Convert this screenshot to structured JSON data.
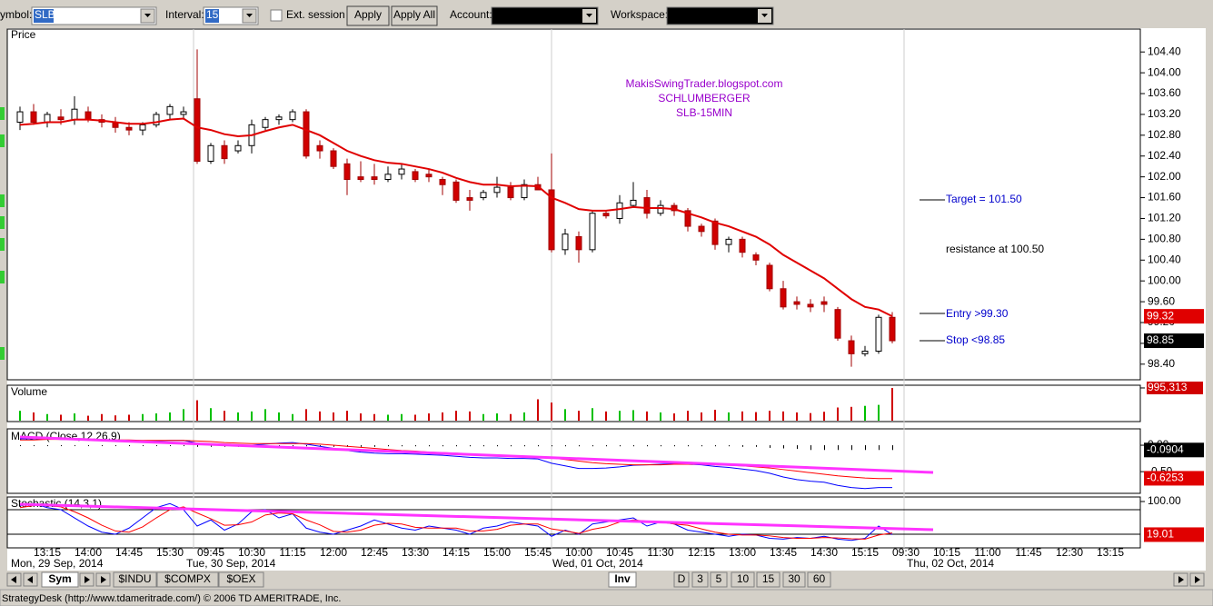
{
  "toolbar": {
    "symbol_label": "ymbol:",
    "symbol": "SLB",
    "interval_label": "Interval:",
    "interval": "15",
    "ext_session": "Ext. session",
    "apply": "Apply",
    "apply_all": "Apply All",
    "account_label": "Account:",
    "workspace_label": "Workspace:"
  },
  "chart_data": [
    {
      "type": "candlestick",
      "title": "Price",
      "ohlc": [
        [
          103.05,
          103.35,
          102.9,
          103.25
        ],
        [
          103.25,
          103.4,
          103.0,
          103.05
        ],
        [
          103.05,
          103.25,
          102.95,
          103.2
        ],
        [
          103.15,
          103.3,
          103.0,
          103.1
        ],
        [
          103.1,
          103.55,
          103.0,
          103.3
        ],
        [
          103.25,
          103.35,
          103.05,
          103.1
        ],
        [
          103.1,
          103.2,
          102.95,
          103.05
        ],
        [
          103.05,
          103.15,
          102.85,
          102.95
        ],
        [
          102.95,
          103.05,
          102.8,
          102.9
        ],
        [
          102.9,
          103.05,
          102.8,
          103.0
        ],
        [
          103.0,
          103.25,
          102.95,
          103.2
        ],
        [
          103.2,
          103.4,
          103.1,
          103.35
        ],
        [
          103.2,
          103.35,
          103.1,
          103.25
        ],
        [
          103.5,
          104.45,
          102.25,
          102.3
        ],
        [
          102.3,
          102.65,
          102.25,
          102.6
        ],
        [
          102.6,
          102.7,
          102.25,
          102.35
        ],
        [
          102.5,
          102.7,
          102.45,
          102.6
        ],
        [
          102.6,
          103.1,
          102.45,
          103.0
        ],
        [
          102.95,
          103.15,
          102.9,
          103.1
        ],
        [
          103.1,
          103.2,
          103.0,
          103.15
        ],
        [
          103.1,
          103.3,
          103.05,
          103.25
        ],
        [
          103.25,
          103.3,
          102.35,
          102.4
        ],
        [
          102.6,
          102.7,
          102.35,
          102.5
        ],
        [
          102.5,
          102.55,
          102.15,
          102.2
        ],
        [
          102.25,
          102.35,
          101.65,
          101.95
        ],
        [
          102.0,
          102.3,
          101.9,
          101.95
        ],
        [
          102.0,
          102.25,
          101.85,
          101.95
        ],
        [
          101.95,
          102.2,
          101.9,
          102.05
        ],
        [
          102.05,
          102.25,
          101.95,
          102.15
        ],
        [
          102.1,
          102.15,
          101.9,
          101.95
        ],
        [
          102.05,
          102.15,
          101.9,
          102.0
        ],
        [
          101.95,
          102.0,
          101.65,
          101.85
        ],
        [
          101.9,
          101.95,
          101.5,
          101.55
        ],
        [
          101.6,
          101.75,
          101.35,
          101.55
        ],
        [
          101.6,
          101.75,
          101.55,
          101.7
        ],
        [
          101.7,
          102.0,
          101.6,
          101.8
        ],
        [
          101.8,
          101.9,
          101.55,
          101.6
        ],
        [
          101.6,
          101.95,
          101.55,
          101.85
        ],
        [
          101.85,
          102.0,
          101.75,
          101.75
        ],
        [
          101.75,
          102.45,
          100.55,
          100.6
        ],
        [
          100.6,
          101.0,
          100.5,
          100.9
        ],
        [
          100.85,
          100.95,
          100.35,
          100.6
        ],
        [
          100.6,
          101.35,
          100.55,
          101.3
        ],
        [
          101.3,
          101.35,
          101.2,
          101.25
        ],
        [
          101.2,
          101.65,
          101.1,
          101.5
        ],
        [
          101.45,
          101.9,
          101.4,
          101.55
        ],
        [
          101.6,
          101.75,
          101.2,
          101.3
        ],
        [
          101.3,
          101.55,
          101.25,
          101.45
        ],
        [
          101.45,
          101.5,
          101.25,
          101.35
        ],
        [
          101.35,
          101.4,
          100.95,
          101.05
        ],
        [
          101.05,
          101.1,
          100.85,
          100.95
        ],
        [
          101.15,
          101.2,
          100.6,
          100.7
        ],
        [
          100.7,
          100.85,
          100.55,
          100.8
        ],
        [
          100.8,
          100.85,
          100.45,
          100.55
        ],
        [
          100.5,
          100.55,
          100.3,
          100.4
        ],
        [
          100.3,
          100.35,
          99.8,
          99.85
        ],
        [
          99.85,
          100.0,
          99.45,
          99.5
        ],
        [
          99.6,
          99.7,
          99.45,
          99.55
        ],
        [
          99.55,
          99.65,
          99.4,
          99.5
        ],
        [
          99.6,
          99.7,
          99.4,
          99.55
        ],
        [
          99.45,
          99.5,
          98.85,
          98.9
        ],
        [
          98.85,
          98.95,
          98.35,
          98.6
        ],
        [
          98.6,
          98.75,
          98.55,
          98.65
        ],
        [
          98.65,
          99.35,
          98.6,
          99.3
        ],
        [
          99.3,
          99.4,
          98.8,
          98.85
        ]
      ],
      "series": [
        {
          "color": "#e00000",
          "values": [
            103.0,
            103.02,
            103.05,
            103.05,
            103.1,
            103.1,
            103.08,
            103.05,
            103.02,
            103.02,
            103.05,
            103.1,
            103.12,
            102.95,
            102.9,
            102.82,
            102.78,
            102.8,
            102.88,
            102.95,
            103.0,
            102.9,
            102.8,
            102.65,
            102.5,
            102.4,
            102.32,
            102.27,
            102.25,
            102.2,
            102.15,
            102.08,
            101.98,
            101.9,
            101.85,
            101.85,
            101.82,
            101.83,
            101.82,
            101.6,
            101.5,
            101.38,
            101.35,
            101.35,
            101.38,
            101.42,
            101.4,
            101.4,
            101.38,
            101.3,
            101.22,
            101.12,
            101.05,
            100.95,
            100.85,
            100.7,
            100.5,
            100.35,
            100.2,
            100.05,
            99.85,
            99.65,
            99.5,
            99.45,
            99.32
          ]
        }
      ],
      "up_color": "#ffffff",
      "down_color": "#d00000",
      "ylim": [
        98.1,
        104.84
      ],
      "yticks": [
        {
          "value": 98.4,
          "label": "98.40"
        },
        {
          "value": 98.8,
          "label": "98.80"
        },
        {
          "value": 99.2,
          "label": "99.20"
        },
        {
          "value": 99.6,
          "label": "99.60"
        },
        {
          "value": 100,
          "label": "100.00"
        },
        {
          "value": 100.4,
          "label": "100.40"
        },
        {
          "value": 100.8,
          "label": "100.80"
        },
        {
          "value": 101.2,
          "label": "101.20"
        },
        {
          "value": 101.6,
          "label": "101.60"
        },
        {
          "value": 102,
          "label": "102.00"
        },
        {
          "value": 102.4,
          "label": "102.40"
        },
        {
          "value": 102.8,
          "label": "102.80"
        },
        {
          "value": 103.2,
          "label": "103.20"
        },
        {
          "value": 103.6,
          "label": "103.60"
        },
        {
          "value": 104,
          "label": "104.00"
        },
        {
          "value": 104.4,
          "label": "104.40"
        }
      ],
      "last_labels": [
        {
          "value": 99.32,
          "color": "#e00000"
        },
        {
          "value": 98.85,
          "color": "#000000"
        }
      ],
      "annotations": [
        "MakisSwingTrader.blogspot.com",
        "SCHLUMBERGER",
        "SLB-15MIN",
        "Target = 101.50",
        "resistance at 100.50",
        "Entry >99.30",
        "Stop <98.85"
      ]
    },
    {
      "type": "bar",
      "title": "Volume",
      "values": [
        300000,
        250000,
        200000,
        180000,
        220000,
        150000,
        200000,
        160000,
        180000,
        200000,
        220000,
        250000,
        350000,
        620000,
        380000,
        300000,
        250000,
        280000,
        350000,
        250000,
        200000,
        350000,
        280000,
        250000,
        300000,
        220000,
        200000,
        180000,
        200000,
        180000,
        220000,
        250000,
        300000,
        280000,
        200000,
        220000,
        200000,
        250000,
        650000,
        550000,
        350000,
        300000,
        380000,
        280000,
        300000,
        320000,
        280000,
        250000,
        220000,
        300000,
        250000,
        330000,
        250000,
        280000,
        260000,
        300000,
        280000,
        250000,
        230000,
        270000,
        400000,
        420000,
        450000,
        480000,
        995313
      ],
      "up_color": "#00c000",
      "down_color": "#d00000",
      "ylim": [
        0,
        1050000
      ],
      "yticks": [
        {
          "value": 995313,
          "label": "995,313"
        }
      ]
    },
    {
      "type": "line",
      "title": "MACD (Close,12,26,9)",
      "series": [
        {
          "color": "#0000ff",
          "values": [
            0.12,
            0.12,
            0.12,
            0.11,
            0.11,
            0.1,
            0.1,
            0.09,
            0.08,
            0.08,
            0.08,
            0.09,
            0.09,
            0.04,
            0.02,
            0,
            -0.01,
            0,
            0.02,
            0.04,
            0.05,
            0.02,
            -0.02,
            -0.06,
            -0.1,
            -0.13,
            -0.15,
            -0.16,
            -0.16,
            -0.17,
            -0.18,
            -0.19,
            -0.21,
            -0.23,
            -0.24,
            -0.24,
            -0.25,
            -0.25,
            -0.26,
            -0.34,
            -0.39,
            -0.44,
            -0.44,
            -0.43,
            -0.41,
            -0.38,
            -0.37,
            -0.36,
            -0.35,
            -0.36,
            -0.37,
            -0.4,
            -0.42,
            -0.45,
            -0.48,
            -0.53,
            -0.6,
            -0.65,
            -0.68,
            -0.7,
            -0.76,
            -0.8,
            -0.82,
            -0.8,
            -0.8
          ]
        },
        {
          "color": "#ff0000",
          "values": [
            0.1,
            0.1,
            0.11,
            0.11,
            0.11,
            0.11,
            0.1,
            0.1,
            0.1,
            0.09,
            0.09,
            0.09,
            0.09,
            0.08,
            0.07,
            0.05,
            0.04,
            0.03,
            0.03,
            0.03,
            0.03,
            0.03,
            0.02,
            0,
            -0.02,
            -0.04,
            -0.06,
            -0.08,
            -0.1,
            -0.11,
            -0.13,
            -0.14,
            -0.15,
            -0.17,
            -0.18,
            -0.19,
            -0.2,
            -0.21,
            -0.22,
            -0.24,
            -0.27,
            -0.3,
            -0.33,
            -0.35,
            -0.36,
            -0.37,
            -0.37,
            -0.37,
            -0.36,
            -0.36,
            -0.36,
            -0.37,
            -0.38,
            -0.39,
            -0.41,
            -0.43,
            -0.46,
            -0.49,
            -0.52,
            -0.55,
            -0.58,
            -0.6,
            -0.62,
            -0.63,
            -0.63
          ]
        }
      ],
      "histogram": [
        0,
        0,
        0,
        0,
        0,
        0,
        0,
        -0.01,
        -0.01,
        -0.01,
        -0.01,
        -0.01,
        -0.01,
        -0.03,
        -0.03,
        -0.03,
        -0.03,
        -0.02,
        -0.02,
        -0.02,
        -0.02,
        -0.02,
        -0.02,
        -0.03,
        -0.03,
        -0.03,
        -0.03,
        -0.02,
        -0.02,
        -0.02,
        -0.02,
        -0.02,
        -0.02,
        -0.02,
        -0.02,
        -0.02,
        -0.02,
        -0.02,
        -0.02,
        -0.02,
        -0.02,
        -0.02,
        -0.02,
        -0.02,
        -0.02,
        -0.02,
        -0.02,
        -0.02,
        -0.02,
        -0.02,
        -0.02,
        -0.02,
        -0.02,
        -0.03,
        -0.03,
        -0.05,
        -0.06,
        -0.07,
        -0.09,
        -0.09,
        -0.09,
        -0.09,
        -0.09,
        -0.09,
        -0.0904
      ],
      "ylim": [
        -0.91,
        0.31
      ],
      "yticks": [
        {
          "value": 0,
          "label": "0.00"
        },
        {
          "value": -0.5,
          "label": "-0.50"
        }
      ],
      "last_labels": [
        {
          "value": -0.0904,
          "color": "#000000"
        },
        {
          "value": -0.6253,
          "color": "#e00000"
        }
      ]
    },
    {
      "type": "line",
      "title": "Stochastic (14,3,1)",
      "series": [
        {
          "color": "#0000ff",
          "values": [
            90,
            95,
            85,
            80,
            60,
            40,
            25,
            20,
            35,
            60,
            85,
            95,
            80,
            40,
            55,
            30,
            45,
            75,
            80,
            60,
            70,
            35,
            25,
            20,
            30,
            40,
            55,
            45,
            35,
            30,
            40,
            35,
            30,
            20,
            35,
            40,
            50,
            45,
            40,
            15,
            30,
            20,
            45,
            50,
            55,
            60,
            40,
            50,
            45,
            30,
            25,
            20,
            15,
            20,
            18,
            10,
            8,
            12,
            10,
            15,
            8,
            5,
            10,
            40,
            19.01
          ]
        },
        {
          "color": "#ff0000",
          "values": [
            85,
            90,
            90,
            87,
            75,
            60,
            42,
            28,
            25,
            38,
            60,
            80,
            87,
            72,
            58,
            42,
            43,
            50,
            67,
            72,
            70,
            55,
            43,
            27,
            25,
            30,
            42,
            47,
            45,
            37,
            35,
            35,
            35,
            28,
            28,
            32,
            42,
            45,
            45,
            33,
            28,
            22,
            32,
            38,
            50,
            55,
            52,
            50,
            45,
            42,
            33,
            25,
            20,
            18,
            18,
            16,
            12,
            10,
            10,
            12,
            11,
            9,
            8,
            18,
            23
          ]
        }
      ],
      "levels": [
        80,
        20
      ],
      "ylim": [
        -13.3,
        108.9
      ],
      "yticks": [
        {
          "value": 100,
          "label": "100.00"
        }
      ],
      "last_labels": [
        {
          "value": 19.01,
          "color": "#e00000"
        }
      ]
    }
  ],
  "time_axis": {
    "labels": [
      "13:15",
      "14:00",
      "14:45",
      "15:30",
      "09:45",
      "10:30",
      "11:15",
      "12:00",
      "12:45",
      "13:30",
      "14:15",
      "15:00",
      "15:45",
      "10:00",
      "10:45",
      "11:30",
      "12:15",
      "13:00",
      "13:45",
      "14:30",
      "15:15",
      "09:30",
      "10:15",
      "11:00",
      "11:45",
      "12:30",
      "13:15"
    ],
    "dates": [
      "Mon, 29 Sep, 2014",
      "Tue, 30 Sep, 2014",
      "Wed, 01 Oct, 2014",
      "Thu, 02 Oct, 2014"
    ]
  },
  "tabs": {
    "left": [
      "Sym",
      "$INDU",
      "$COMPX",
      "$OEX"
    ],
    "right": [
      "Inv",
      "D",
      "3",
      "5",
      "10",
      "15",
      "30",
      "60"
    ]
  },
  "status": "StrategyDesk (http://www.tdameritrade.com/) © 2006 TD AMERITRADE, Inc."
}
